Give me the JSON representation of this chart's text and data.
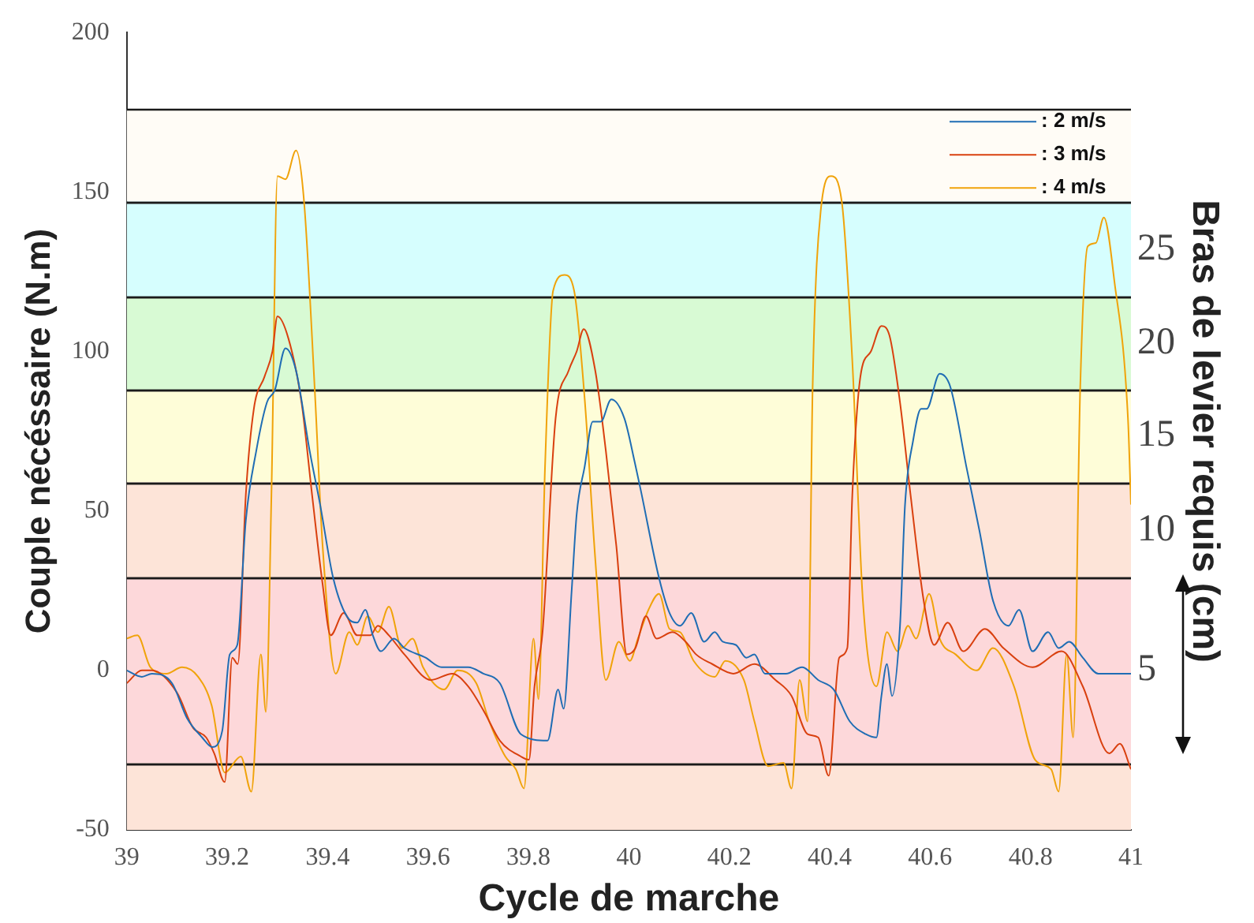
{
  "chart_data": {
    "type": "line",
    "xlabel": "Cycle de marche",
    "ylabel": "Couple nécéssaire (N.m)",
    "y2label": "Bras de levier requis (cm)",
    "xlim": [
      39,
      41
    ],
    "xticks": [
      39,
      39.2,
      39.4,
      39.6,
      39.8,
      40,
      40.2,
      40.4,
      40.6,
      40.8,
      41
    ],
    "ylim": [
      -50,
      200
    ],
    "yticks": [
      -50,
      0,
      50,
      100,
      150,
      200
    ],
    "grid": false,
    "legend": "top right",
    "marker": "none",
    "line_style": "solid",
    "bands": [
      {
        "axis": "y",
        "from": 147,
        "to": 176,
        "color": "#fffcf6"
      },
      {
        "axis": "y",
        "from": 117,
        "to": 147,
        "color": "#d6fefe",
        "label": "25"
      },
      {
        "axis": "y",
        "from": 88,
        "to": 117,
        "color": "#d8fad4",
        "label": "20"
      },
      {
        "axis": "y",
        "from": 59,
        "to": 88,
        "color": "#fefdd8",
        "label": "15"
      },
      {
        "axis": "y",
        "from": 29,
        "to": 59,
        "color": "#fde4d8",
        "label": "10"
      },
      {
        "axis": "y",
        "from": -29,
        "to": 29,
        "color": "#fdd8da",
        "label": "5"
      },
      {
        "axis": "y",
        "from": -50,
        "to": -29,
        "color": "#fde4d8"
      }
    ],
    "series": [
      {
        "name": ": 2 m/s",
        "color": "#1f6db4",
        "x": [
          39.0,
          39.03,
          39.05,
          39.09,
          39.12,
          39.15,
          39.17,
          39.19,
          39.205,
          39.22,
          39.237,
          39.258,
          39.279,
          39.295,
          39.316,
          39.337,
          39.364,
          39.385,
          39.411,
          39.438,
          39.459,
          39.475,
          39.49,
          39.506,
          39.532,
          39.553,
          39.595,
          39.627,
          39.68,
          39.71,
          39.743,
          39.785,
          39.838,
          39.859,
          39.87,
          39.886,
          39.896,
          39.912,
          39.928,
          39.944,
          39.965,
          39.991,
          40.012,
          40.023,
          40.06,
          40.081,
          40.102,
          40.124,
          40.15,
          40.171,
          40.187,
          40.213,
          40.234,
          40.25,
          40.271,
          40.313,
          40.345,
          40.377,
          40.408,
          40.44,
          40.472,
          40.493,
          40.503,
          40.514,
          40.524,
          40.54,
          40.55,
          40.566,
          40.582,
          40.593,
          40.619,
          40.64,
          40.672,
          40.698,
          40.725,
          40.756,
          40.777,
          40.804,
          40.835,
          40.856,
          40.877,
          40.904,
          40.935,
          40.967,
          41.0
        ],
        "values": [
          0,
          -2,
          -1,
          -4,
          -15,
          -21,
          -24,
          -19,
          5,
          8,
          47,
          69,
          84,
          88,
          101,
          94,
          69,
          52,
          29,
          17,
          15,
          19,
          11,
          6,
          10,
          7,
          4,
          1,
          1,
          -1,
          -4,
          -20,
          -22,
          -6,
          -12,
          25,
          49,
          64,
          78,
          78,
          85,
          79,
          65,
          57,
          29,
          18,
          14,
          18,
          9,
          12,
          9,
          8,
          4,
          5,
          -1,
          -1,
          1,
          -3,
          -6,
          -16,
          -20,
          -21,
          -8,
          2,
          -8,
          14,
          52,
          72,
          82,
          82,
          93,
          89,
          64,
          44,
          22,
          14,
          19,
          6,
          12,
          7,
          9,
          4,
          -1,
          -1,
          -1
        ]
      },
      {
        "name": ": 3 m/s",
        "color": "#d9400f",
        "x": [
          39.0,
          39.03,
          39.05,
          39.1,
          39.132,
          39.158,
          39.174,
          39.195,
          39.21,
          39.221,
          39.237,
          39.253,
          39.274,
          39.29,
          39.3,
          39.322,
          39.348,
          39.369,
          39.39,
          39.406,
          39.432,
          39.459,
          39.485,
          39.5,
          39.522,
          39.553,
          39.606,
          39.648,
          39.68,
          39.712,
          39.743,
          39.785,
          39.801,
          39.812,
          39.828,
          39.854,
          39.88,
          39.896,
          39.91,
          39.933,
          39.954,
          39.975,
          39.996,
          40.013,
          40.034,
          40.055,
          40.087,
          40.113,
          40.134,
          40.166,
          40.208,
          40.25,
          40.292,
          40.324,
          40.356,
          40.377,
          40.398,
          40.419,
          40.435,
          40.445,
          40.461,
          40.482,
          40.503,
          40.519,
          40.54,
          40.561,
          40.587,
          40.608,
          40.635,
          40.666,
          40.709,
          40.746,
          40.804,
          40.862,
          40.904,
          40.957,
          40.978,
          41.0
        ],
        "values": [
          -4,
          0,
          0,
          -7,
          -18,
          -21,
          -26,
          -35,
          4,
          2,
          55,
          82,
          92,
          100,
          111,
          104,
          84,
          55,
          27,
          11,
          18,
          11,
          11,
          14,
          11,
          5,
          -3,
          -1,
          -5,
          -13,
          -22,
          -27,
          -28,
          -5,
          12,
          79,
          94,
          100,
          107,
          94,
          69,
          39,
          5,
          7,
          17,
          10,
          12,
          9,
          5,
          2,
          -1,
          2,
          -3,
          -8,
          -20,
          -21,
          -33,
          4,
          7,
          55,
          92,
          100,
          108,
          105,
          84,
          55,
          22,
          8,
          15,
          6,
          13,
          7,
          1,
          6,
          -5,
          -26,
          -23,
          -31
        ]
      },
      {
        "name": ": 4 m/s",
        "color": "#f0a30a",
        "x": [
          39.0,
          39.021,
          39.047,
          39.079,
          39.11,
          39.142,
          39.169,
          39.195,
          39.227,
          39.248,
          39.267,
          39.277,
          39.288,
          39.3,
          39.316,
          39.337,
          39.353,
          39.374,
          39.39,
          39.416,
          39.443,
          39.459,
          39.48,
          39.5,
          39.522,
          39.548,
          39.569,
          39.59,
          39.632,
          39.659,
          39.696,
          39.722,
          39.754,
          39.775,
          39.791,
          39.81,
          39.82,
          39.833,
          39.849,
          39.872,
          39.891,
          39.912,
          39.933,
          39.954,
          39.98,
          40.002,
          40.018,
          40.039,
          40.06,
          40.081,
          40.102,
          40.129,
          40.171,
          40.192,
          40.229,
          40.25,
          40.277,
          40.308,
          40.324,
          40.34,
          40.356,
          40.366,
          40.382,
          40.403,
          40.424,
          40.445,
          40.466,
          40.493,
          40.514,
          40.535,
          40.556,
          40.572,
          40.598,
          40.619,
          40.651,
          40.693,
          40.725,
          40.767,
          40.809,
          40.841,
          40.856,
          40.872,
          40.885,
          40.899,
          40.914,
          40.93,
          40.946,
          40.967,
          40.994,
          41.0
        ],
        "values": [
          10,
          11,
          1,
          -1,
          1,
          -2,
          -11,
          -32,
          -27,
          -38,
          5,
          -13,
          55,
          155,
          154,
          163,
          147,
          89,
          39,
          -1,
          12,
          8,
          17,
          12,
          20,
          7,
          10,
          1,
          -6,
          0,
          -4,
          -16,
          -27,
          -31,
          -37,
          10,
          -9,
          64,
          119,
          124,
          119,
          85,
          35,
          -3,
          9,
          3,
          10,
          19,
          24,
          13,
          12,
          3,
          -2,
          3,
          -3,
          -16,
          -30,
          -29,
          -37,
          -3,
          -16,
          89,
          144,
          155,
          147,
          97,
          22,
          -5,
          12,
          6,
          14,
          10,
          24,
          10,
          5,
          0,
          7,
          -5,
          -28,
          -31,
          -38,
          5,
          -21,
          89,
          133,
          134,
          142,
          122,
          79,
          52
        ]
      }
    ]
  }
}
